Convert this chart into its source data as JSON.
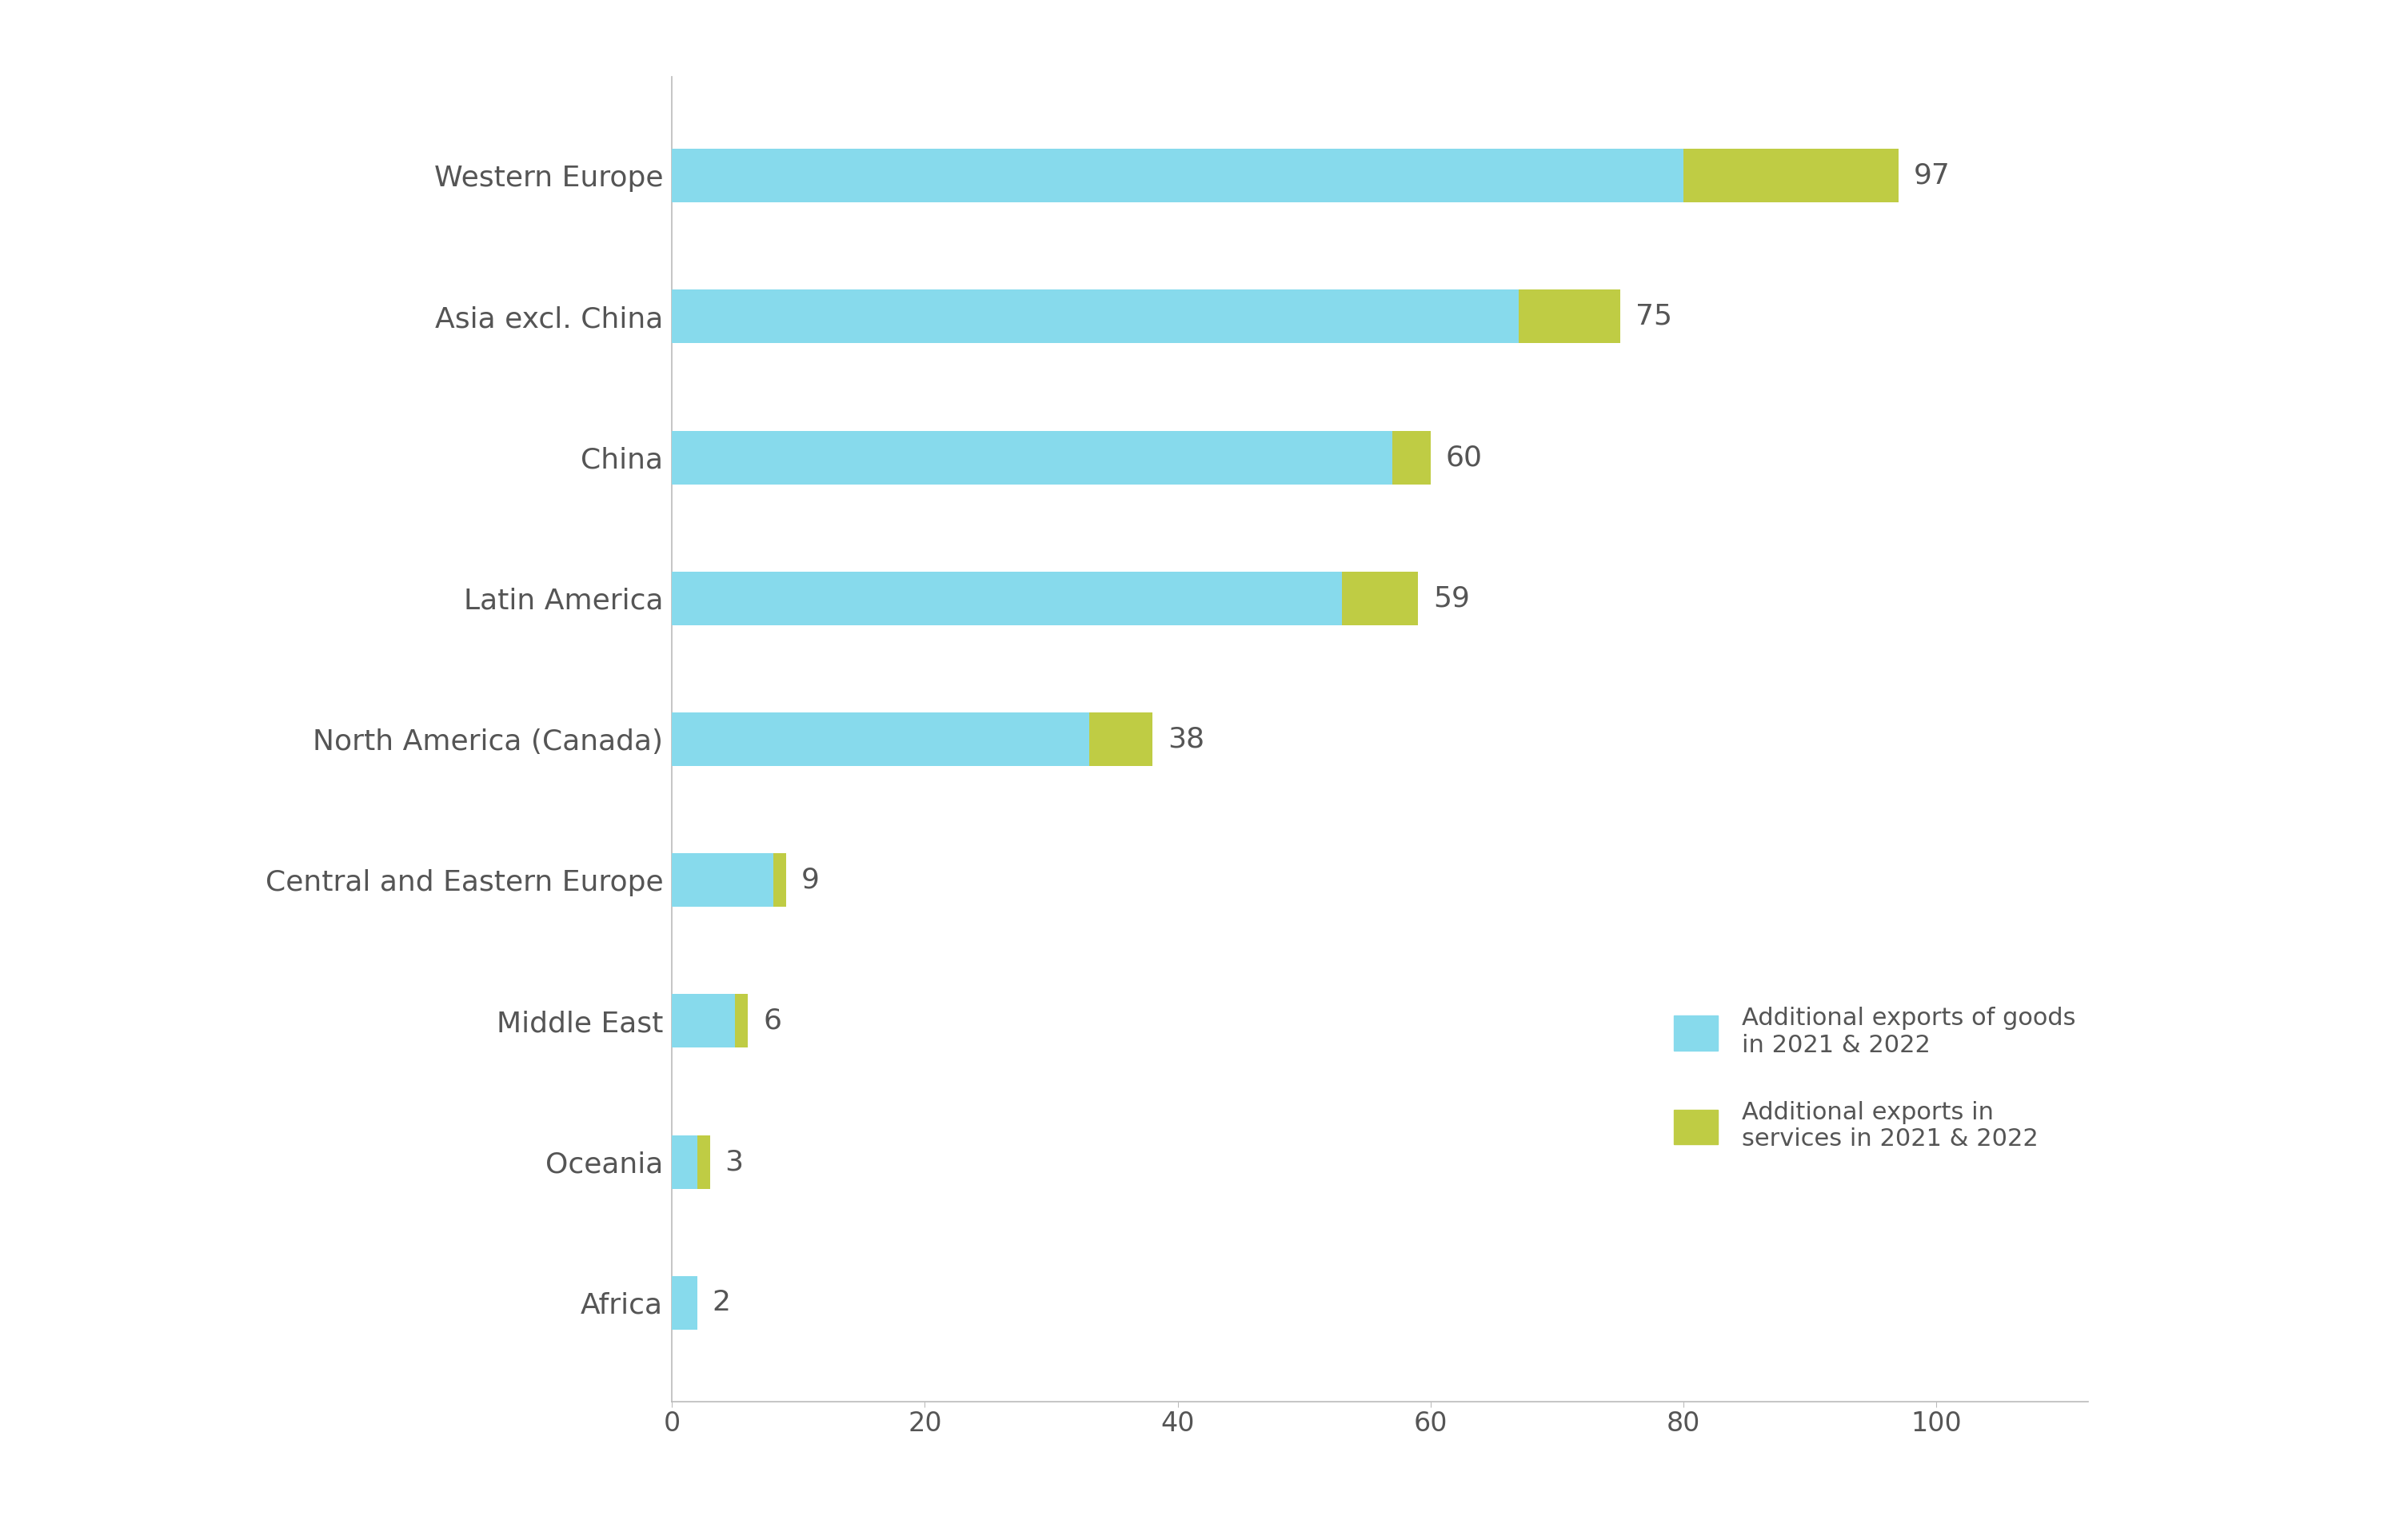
{
  "categories": [
    "Africa",
    "Oceania",
    "Middle East",
    "Central and Eastern Europe",
    "North America (Canada)",
    "Latin America",
    "China",
    "Asia excl. China",
    "Western Europe"
  ],
  "goods_values": [
    2,
    2,
    5,
    8,
    33,
    53,
    57,
    67,
    80
  ],
  "services_values": [
    0,
    1,
    1,
    1,
    5,
    6,
    3,
    8,
    17
  ],
  "totals": [
    2,
    3,
    6,
    9,
    38,
    59,
    60,
    75,
    97
  ],
  "goods_color": "#87DAEC",
  "services_color": "#BFCC44",
  "background_color": "#FFFFFF",
  "bar_height": 0.38,
  "xlim": [
    0,
    112
  ],
  "xticks": [
    0,
    20,
    40,
    60,
    80,
    100
  ],
  "label_fontsize": 26,
  "tick_fontsize": 24,
  "total_label_fontsize": 26,
  "legend_fontsize": 22,
  "legend_goods_text": "Additional exports of goods\nin 2021 & 2022",
  "legend_services_text": "Additional exports in\nservices in 2021 & 2022",
  "spine_color": "#BBBBBB",
  "text_color": "#555555"
}
